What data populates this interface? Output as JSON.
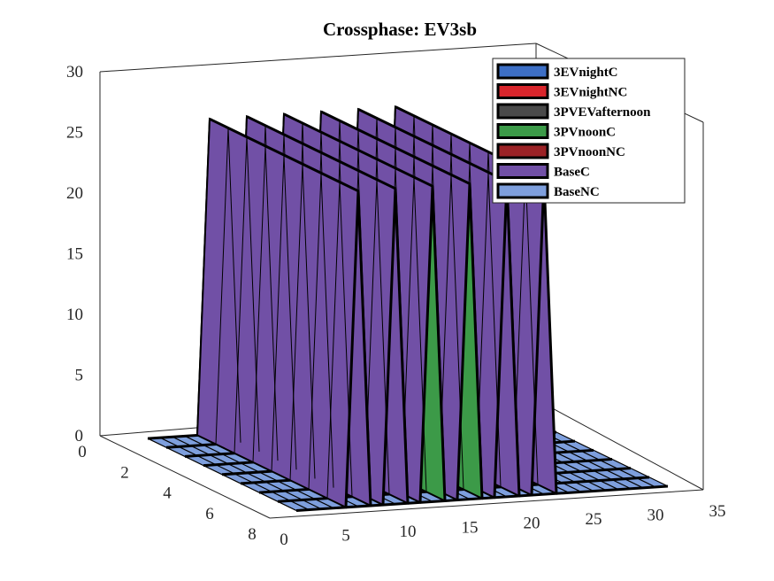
{
  "chart_data": {
    "type": "3d-surface",
    "title": "Crossphase: EV3sb",
    "x_ticks": [
      "0",
      "5",
      "10",
      "15",
      "20",
      "25",
      "30",
      "35"
    ],
    "y_ticks": [
      "0",
      "2",
      "4",
      "6",
      "8"
    ],
    "z_ticks": [
      "0",
      "5",
      "10",
      "15",
      "20",
      "25",
      "30"
    ],
    "xlim": [
      0,
      35
    ],
    "ylim": [
      0,
      8
    ],
    "zlim": [
      0,
      30
    ],
    "grid": false,
    "legend_placement": "top-right",
    "series": [
      {
        "name": "3EVnightC",
        "color": "#3d6fc6"
      },
      {
        "name": "3EVnightNC",
        "color": "#d9262c"
      },
      {
        "name": "3PVEVafternoon",
        "color": "#4a4a4a"
      },
      {
        "name": "3PVnoonC",
        "color": "#3c9a48"
      },
      {
        "name": "3PVnoonNC",
        "color": "#9b2226"
      },
      {
        "name": "BaseC",
        "color": "#7150a6"
      },
      {
        "name": "BaseNC",
        "color": "#7e9fdd"
      }
    ],
    "peak_value": 26
  }
}
